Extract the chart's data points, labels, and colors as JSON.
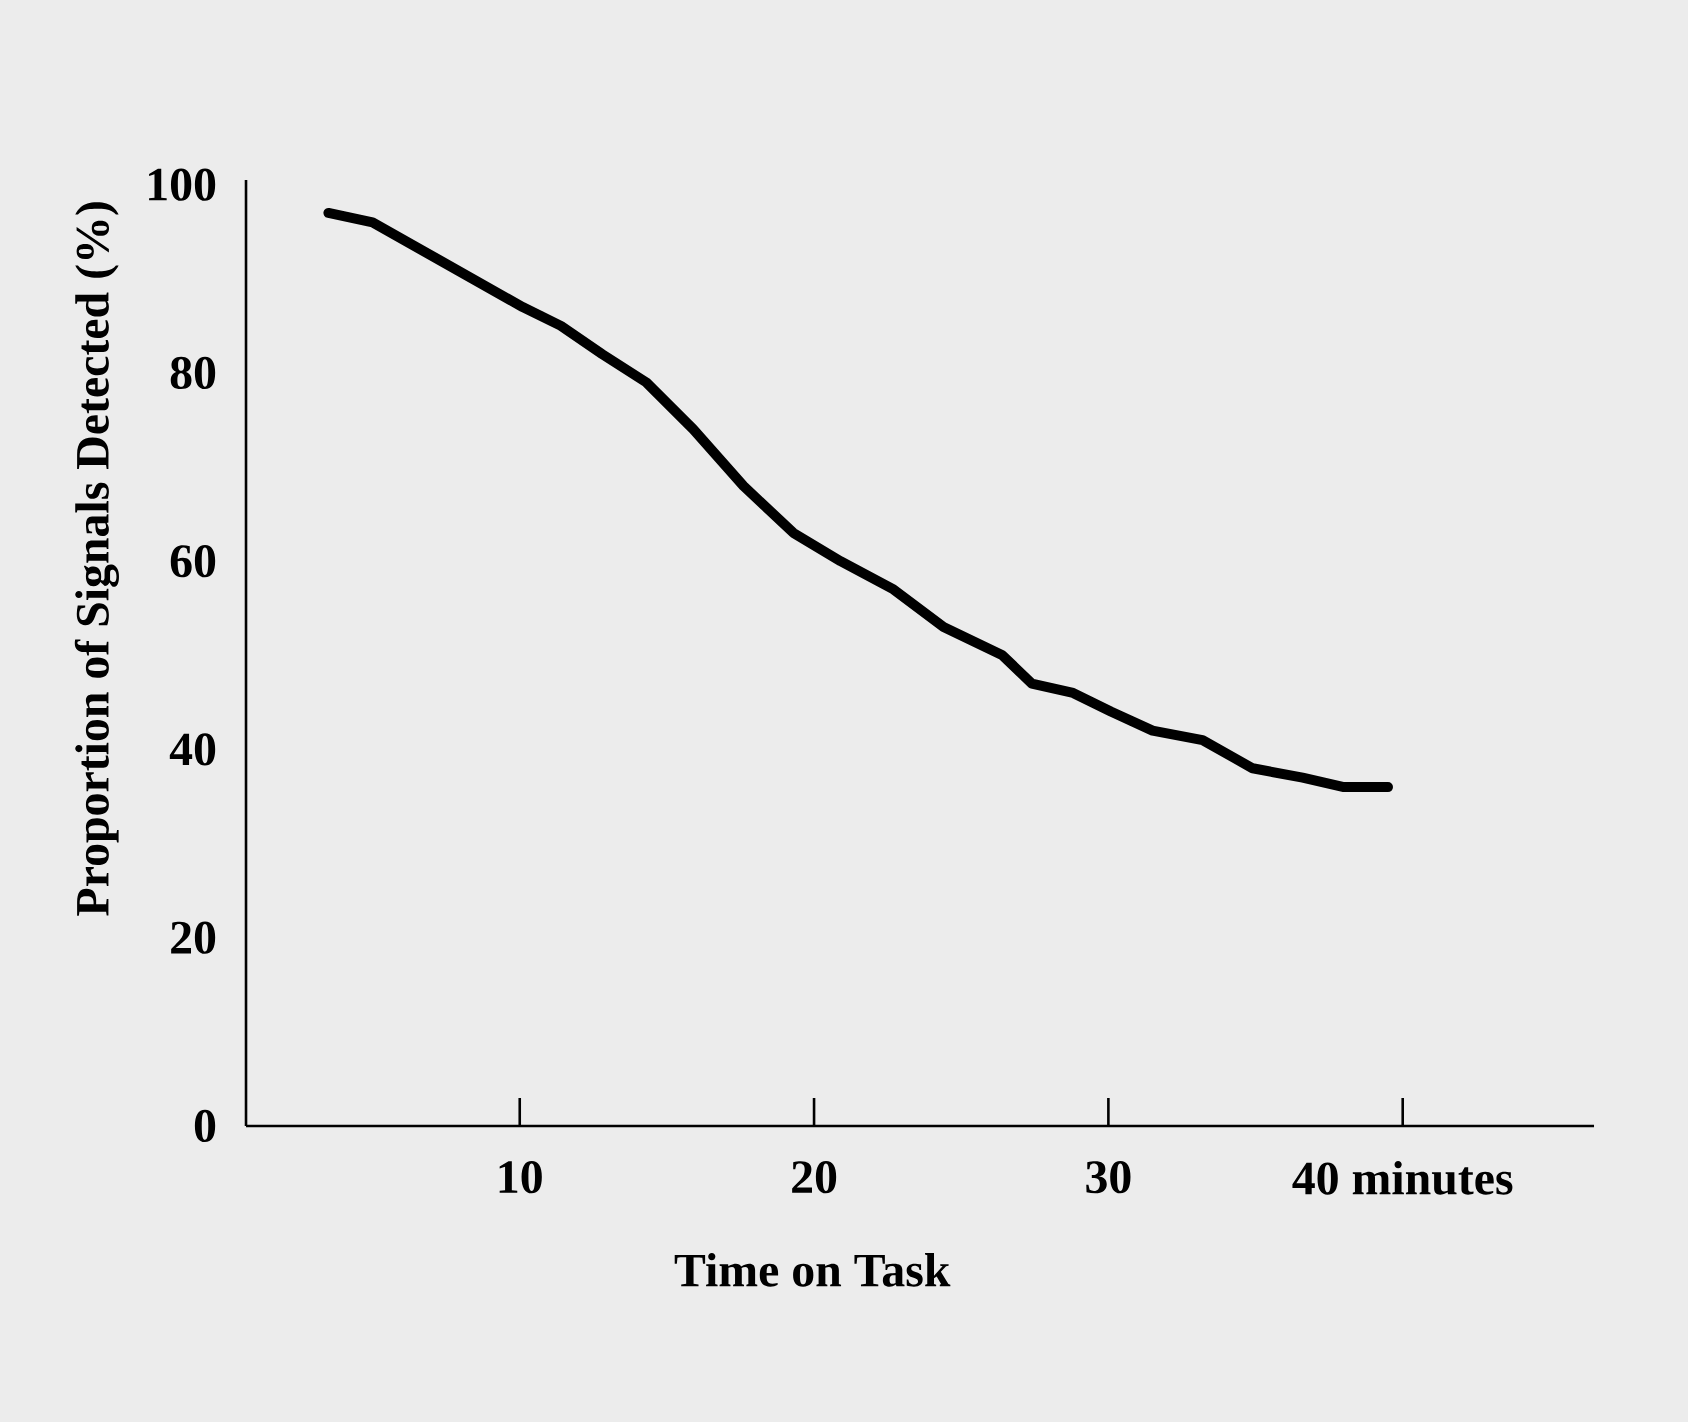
{
  "chart_data": {
    "type": "line",
    "xlabel": "Time on Task",
    "ylabel": "Proportion of Signals Detected (%)",
    "x": [
      3.5,
      5.0,
      6.7,
      8.4,
      10.1,
      11.4,
      12.8,
      14.3,
      15.9,
      17.6,
      19.3,
      20.9,
      22.7,
      24.4,
      26.4,
      27.4,
      28.8,
      30.1,
      31.5,
      33.2,
      34.9,
      36.6,
      38.0,
      39.5
    ],
    "values": [
      97,
      96,
      93,
      90,
      87,
      85,
      82,
      79,
      74,
      68,
      63,
      60,
      57,
      53,
      50,
      47,
      46,
      44,
      42,
      41,
      38,
      37,
      36,
      36
    ],
    "color": "#000000",
    "xlim": [
      0.7,
      46.5
    ],
    "ylim": [
      0,
      100.5
    ],
    "xticks": [
      10,
      20,
      30,
      {
        "value": 40,
        "label": "40 minutes"
      }
    ],
    "yticks": [
      0,
      20,
      40,
      60,
      80,
      100
    ]
  }
}
